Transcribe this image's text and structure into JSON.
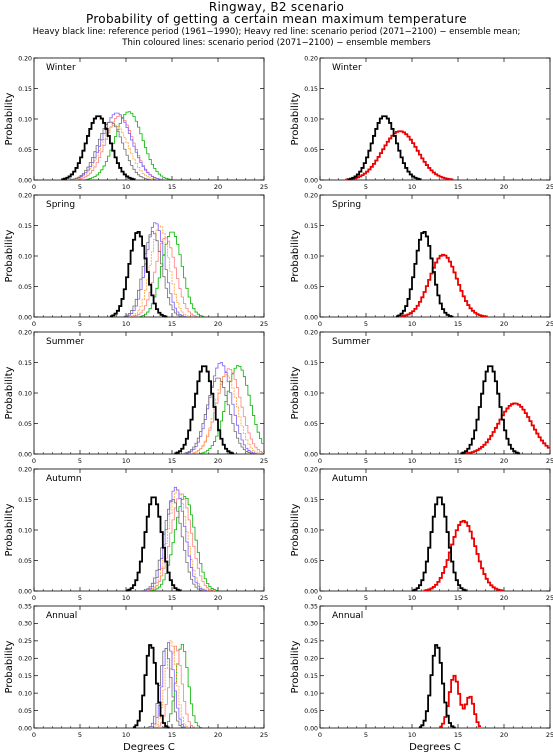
{
  "header": {
    "title": "Ringway, B2 scenario",
    "subtitle": "Probability of getting a certain mean maximum temperature",
    "legend_line1": "Heavy black line: reference period (1961−1990); Heavy red line: scenario period (2071−2100) − ensemble mean;",
    "legend_line2": "Thin coloured lines: scenario period (2071−2100) − ensemble members"
  },
  "colors": {
    "reference": "#000000",
    "ensemble_mean": "#ee0000",
    "members": [
      "#00b400",
      "#ff7f7f",
      "#ff9f2f",
      "#7f5fff",
      "#6f6f6f"
    ]
  },
  "axis_labels": {
    "x": "Degrees C",
    "y": "Probability"
  },
  "chart_data": [
    {
      "type": "line",
      "panel": "Winter",
      "variant": "members",
      "xlim": [
        0,
        25
      ],
      "ylim": [
        0,
        0.2
      ],
      "xticks": [
        "0",
        "5",
        "10",
        "15",
        "20",
        "25"
      ],
      "yticks": [
        "0.00",
        "0.05",
        "0.10",
        "0.15",
        "0.20"
      ],
      "reference": {
        "mean": 7.0,
        "sd": 1.3,
        "peak": 0.105
      },
      "members": [
        {
          "mean": 10.3,
          "sd": 1.5,
          "peak": 0.112
        },
        {
          "mean": 9.3,
          "sd": 1.5,
          "peak": 0.105
        },
        {
          "mean": 8.8,
          "sd": 1.5,
          "peak": 0.09
        },
        {
          "mean": 9.0,
          "sd": 1.6,
          "peak": 0.11
        },
        {
          "mean": 8.3,
          "sd": 1.4,
          "peak": 0.095
        }
      ]
    },
    {
      "type": "line",
      "panel": "Winter",
      "variant": "mean",
      "xlim": [
        0,
        25
      ],
      "ylim": [
        0,
        0.2
      ],
      "xticks": [
        "0",
        "5",
        "10",
        "15",
        "20",
        "25"
      ],
      "yticks": [
        "0.00",
        "0.05",
        "0.10",
        "0.15",
        "0.20"
      ],
      "reference": {
        "mean": 7.0,
        "sd": 1.3,
        "peak": 0.105
      },
      "ensemble_mean": {
        "mean": 8.7,
        "sd": 1.9,
        "peak": 0.08
      }
    },
    {
      "type": "line",
      "panel": "Spring",
      "variant": "members",
      "xlim": [
        0,
        25
      ],
      "ylim": [
        0,
        0.2
      ],
      "xticks": [
        "0",
        "5",
        "10",
        "15",
        "20",
        "25"
      ],
      "yticks": [
        "0.00",
        "0.05",
        "0.10",
        "0.15",
        "0.20"
      ],
      "reference": {
        "mean": 11.3,
        "sd": 0.95,
        "peak": 0.14
      },
      "members": [
        {
          "mean": 15.0,
          "sd": 1.1,
          "peak": 0.14
        },
        {
          "mean": 14.3,
          "sd": 1.1,
          "peak": 0.13
        },
        {
          "mean": 13.7,
          "sd": 1.0,
          "peak": 0.15
        },
        {
          "mean": 13.2,
          "sd": 1.0,
          "peak": 0.155
        },
        {
          "mean": 12.9,
          "sd": 1.0,
          "peak": 0.14
        }
      ]
    },
    {
      "type": "line",
      "panel": "Spring",
      "variant": "mean",
      "xlim": [
        0,
        25
      ],
      "ylim": [
        0,
        0.2
      ],
      "xticks": [
        "0",
        "5",
        "10",
        "15",
        "20",
        "25"
      ],
      "yticks": [
        "0.00",
        "0.05",
        "0.10",
        "0.15",
        "0.20"
      ],
      "reference": {
        "mean": 11.3,
        "sd": 0.95,
        "peak": 0.14
      },
      "ensemble_mean": {
        "mean": 13.4,
        "sd": 1.5,
        "peak": 0.102
      }
    },
    {
      "type": "line",
      "panel": "Summer",
      "variant": "members",
      "xlim": [
        0,
        25
      ],
      "ylim": [
        0,
        0.2
      ],
      "xticks": [
        "0",
        "5",
        "10",
        "15",
        "20",
        "25"
      ],
      "yticks": [
        "0.00",
        "0.05",
        "0.10",
        "0.15",
        "0.20"
      ],
      "reference": {
        "mean": 18.5,
        "sd": 1.0,
        "peak": 0.145
      },
      "members": [
        {
          "mean": 22.2,
          "sd": 1.3,
          "peak": 0.145
        },
        {
          "mean": 21.2,
          "sd": 1.3,
          "peak": 0.14
        },
        {
          "mean": 20.9,
          "sd": 1.2,
          "peak": 0.13
        },
        {
          "mean": 20.3,
          "sd": 1.2,
          "peak": 0.15
        },
        {
          "mean": 20.0,
          "sd": 1.2,
          "peak": 0.125
        }
      ]
    },
    {
      "type": "line",
      "panel": "Summer",
      "variant": "mean",
      "xlim": [
        0,
        25
      ],
      "ylim": [
        0,
        0.2
      ],
      "xticks": [
        "0",
        "5",
        "10",
        "15",
        "20",
        "25"
      ],
      "yticks": [
        "0.00",
        "0.05",
        "0.10",
        "0.15",
        "0.20"
      ],
      "reference": {
        "mean": 18.5,
        "sd": 1.0,
        "peak": 0.145
      },
      "ensemble_mean": {
        "mean": 21.2,
        "sd": 1.8,
        "peak": 0.083
      }
    },
    {
      "type": "line",
      "panel": "Autumn",
      "variant": "members",
      "xlim": [
        0,
        25
      ],
      "ylim": [
        0,
        0.2
      ],
      "xticks": [
        "0",
        "5",
        "10",
        "15",
        "20",
        "25"
      ],
      "yticks": [
        "0.00",
        "0.05",
        "0.10",
        "0.15",
        "0.20"
      ],
      "reference": {
        "mean": 13.0,
        "sd": 0.9,
        "peak": 0.155
      },
      "members": [
        {
          "mean": 16.4,
          "sd": 1.1,
          "peak": 0.155
        },
        {
          "mean": 16.0,
          "sd": 1.1,
          "peak": 0.16
        },
        {
          "mean": 15.6,
          "sd": 1.0,
          "peak": 0.165
        },
        {
          "mean": 15.4,
          "sd": 1.0,
          "peak": 0.17
        },
        {
          "mean": 15.1,
          "sd": 1.0,
          "peak": 0.15
        }
      ]
    },
    {
      "type": "line",
      "panel": "Autumn",
      "variant": "mean",
      "xlim": [
        0,
        25
      ],
      "ylim": [
        0,
        0.2
      ],
      "xticks": [
        "0",
        "5",
        "10",
        "15",
        "20",
        "25"
      ],
      "yticks": [
        "0.00",
        "0.05",
        "0.10",
        "0.15",
        "0.20"
      ],
      "reference": {
        "mean": 13.0,
        "sd": 0.9,
        "peak": 0.155
      },
      "ensemble_mean": {
        "mean": 15.6,
        "sd": 1.35,
        "peak": 0.115
      }
    },
    {
      "type": "line",
      "panel": "Annual",
      "variant": "members",
      "xlim": [
        0,
        25
      ],
      "ylim": [
        0,
        0.35
      ],
      "xticks": [
        "0",
        "5",
        "10",
        "15",
        "20",
        "25"
      ],
      "yticks": [
        "0.00",
        "0.05",
        "0.10",
        "0.15",
        "0.20",
        "0.25",
        "0.30",
        "0.35"
      ],
      "reference": {
        "mean": 12.7,
        "sd": 0.6,
        "peak": 0.24
      },
      "members": [
        {
          "mean": 16.1,
          "sd": 0.65,
          "peak": 0.24
        },
        {
          "mean": 15.4,
          "sd": 0.65,
          "peak": 0.235
        },
        {
          "mean": 14.9,
          "sd": 0.6,
          "peak": 0.25
        },
        {
          "mean": 14.6,
          "sd": 0.6,
          "peak": 0.245
        },
        {
          "mean": 14.3,
          "sd": 0.6,
          "peak": 0.23
        }
      ]
    },
    {
      "type": "line",
      "panel": "Annual",
      "variant": "mean",
      "xlim": [
        0,
        25
      ],
      "ylim": [
        0,
        0.35
      ],
      "xticks": [
        "0",
        "5",
        "10",
        "15",
        "20",
        "25"
      ],
      "yticks": [
        "0.00",
        "0.05",
        "0.10",
        "0.15",
        "0.20",
        "0.25",
        "0.30",
        "0.35"
      ],
      "reference": {
        "mean": 12.7,
        "sd": 0.6,
        "peak": 0.24
      },
      "ensemble_mean": {
        "mean": 15.1,
        "sd": 1.1,
        "peak": 0.15,
        "bimodal": [
          {
            "mean": 14.6,
            "sd": 0.55,
            "w": 0.15
          },
          {
            "mean": 16.3,
            "sd": 0.45,
            "w": 0.09
          }
        ]
      }
    }
  ]
}
